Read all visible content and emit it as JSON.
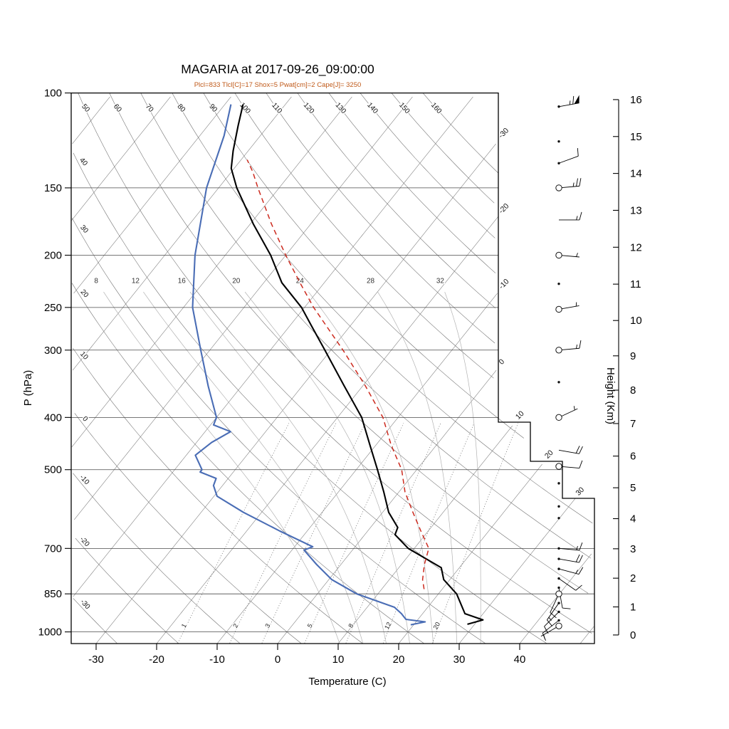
{
  "title": "MAGARIA at 2017-09-26_09:00:00",
  "subtitle": "Plcl=833 Tlcl[C]=17 Shox=5 Pwat[cm]=2 Cape[J]= 3250",
  "indices": {
    "Plcl": 833,
    "Tlcl_C": 17,
    "Shox": 5,
    "Pwat_cm": 2,
    "Cape_J": 3250
  },
  "axes": {
    "pressure_label": "P (hPa)",
    "temperature_label": "Temperature (C)",
    "height_label": "Height (Km)",
    "pressure_ticks": [
      100,
      150,
      200,
      250,
      300,
      400,
      500,
      700,
      850,
      1000
    ],
    "temperature_ticks": [
      -30,
      -20,
      -10,
      0,
      10,
      20,
      30,
      40
    ],
    "height_ticks_km": [
      0,
      1,
      2,
      3,
      4,
      5,
      6,
      7,
      8,
      9,
      10,
      11,
      12,
      13,
      14,
      15,
      16
    ]
  },
  "background": {
    "isotherm_min": -110,
    "isotherm_max": 50,
    "isotherm_step": 10,
    "isotherm_edge_label_values": [
      -30,
      -20,
      -10,
      0,
      10,
      20,
      30
    ],
    "dry_adiabat_min": -30,
    "dry_adiabat_max": 160,
    "dry_adiabat_top_labels": [
      50,
      60,
      70,
      80,
      90,
      100,
      110,
      120,
      130,
      140,
      150,
      160
    ],
    "dry_adiabat_left_labels": [
      40,
      30,
      20,
      10,
      0,
      -10,
      -20,
      -30
    ],
    "moist_adiabats": [
      8,
      12,
      16,
      20,
      24,
      28,
      32
    ],
    "mixing_ratio_lines": [
      1,
      2,
      3,
      5,
      8,
      12,
      20
    ]
  },
  "chart_data": {
    "type": "line",
    "title": "MAGARIA at 2017-09-26_09:00:00",
    "x_axis": {
      "label": "Temperature (C)",
      "range": [
        -35,
        45
      ],
      "unit": "C"
    },
    "y_axis": {
      "label": "P (hPa)",
      "scale": "log",
      "range": [
        1050,
        100
      ],
      "unit": "hPa"
    },
    "legend_position": "none",
    "grid": true,
    "series": [
      {
        "name": "temperature",
        "color": "#000000",
        "style": "solid",
        "points": [
          [
            968,
            28.8
          ],
          [
            950,
            30.8
          ],
          [
            925,
            27
          ],
          [
            850,
            23
          ],
          [
            800,
            19
          ],
          [
            760,
            17
          ],
          [
            700,
            9
          ],
          [
            660,
            5
          ],
          [
            640,
            4.5
          ],
          [
            600,
            1
          ],
          [
            550,
            -2.5
          ],
          [
            500,
            -6.5
          ],
          [
            450,
            -11
          ],
          [
            400,
            -16
          ],
          [
            350,
            -23
          ],
          [
            300,
            -31
          ],
          [
            270,
            -36.5
          ],
          [
            250,
            -40.5
          ],
          [
            225,
            -47
          ],
          [
            200,
            -52.5
          ],
          [
            175,
            -59.5
          ],
          [
            150,
            -67
          ],
          [
            138,
            -70.5
          ],
          [
            128,
            -72.5
          ],
          [
            115,
            -75
          ],
          [
            105,
            -77
          ]
        ]
      },
      {
        "name": "dewpoint",
        "color": "#4a6db5",
        "style": "solid",
        "points": [
          [
            970,
            19.5
          ],
          [
            958,
            21.5
          ],
          [
            948,
            18
          ],
          [
            925,
            16.5
          ],
          [
            900,
            14.5
          ],
          [
            850,
            6.5
          ],
          [
            800,
            0.5
          ],
          [
            750,
            -4
          ],
          [
            705,
            -8
          ],
          [
            695,
            -7
          ],
          [
            650,
            -14.5
          ],
          [
            600,
            -23
          ],
          [
            560,
            -29.5
          ],
          [
            535,
            -31.5
          ],
          [
            519,
            -32
          ],
          [
            505,
            -35.5
          ],
          [
            500,
            -35.5
          ],
          [
            470,
            -38.5
          ],
          [
            445,
            -37.5
          ],
          [
            425,
            -35.8
          ],
          [
            413,
            -39.5
          ],
          [
            400,
            -40
          ],
          [
            350,
            -45.5
          ],
          [
            300,
            -51.5
          ],
          [
            250,
            -58.5
          ],
          [
            200,
            -65
          ],
          [
            150,
            -72
          ],
          [
            120,
            -76
          ],
          [
            105,
            -79
          ]
        ]
      },
      {
        "name": "parcel",
        "color": "#cc2a1e",
        "style": "dashed",
        "points": [
          [
            833,
            17
          ],
          [
            800,
            15.5
          ],
          [
            750,
            13.8
          ],
          [
            700,
            12.4
          ],
          [
            650,
            8.8
          ],
          [
            600,
            5
          ],
          [
            550,
            1
          ],
          [
            500,
            -2.5
          ],
          [
            450,
            -7.5
          ],
          [
            400,
            -12.5
          ],
          [
            350,
            -19.5
          ],
          [
            300,
            -28
          ],
          [
            250,
            -38.5
          ],
          [
            225,
            -44
          ],
          [
            200,
            -50
          ],
          [
            175,
            -56.5
          ],
          [
            150,
            -63.5
          ],
          [
            140,
            -66.5
          ],
          [
            133,
            -69
          ]
        ]
      }
    ],
    "wind_barbs_kt": [
      {
        "p": 106,
        "spd": 65,
        "dir": 80,
        "marker": "dot"
      },
      {
        "p": 123,
        "spd": 0,
        "dir": 0,
        "marker": "dot"
      },
      {
        "p": 135,
        "spd": 10,
        "dir": 70,
        "marker": "dot"
      },
      {
        "p": 150,
        "spd": 25,
        "dir": 85,
        "marker": "circle"
      },
      {
        "p": 172,
        "spd": 15,
        "dir": 90,
        "marker": "none"
      },
      {
        "p": 200,
        "spd": 5,
        "dir": 95,
        "marker": "circle"
      },
      {
        "p": 226,
        "spd": 0,
        "dir": 0,
        "marker": "dot"
      },
      {
        "p": 252,
        "spd": 5,
        "dir": 80,
        "marker": "circle"
      },
      {
        "p": 300,
        "spd": 15,
        "dir": 85,
        "marker": "circle"
      },
      {
        "p": 344,
        "spd": 0,
        "dir": 0,
        "marker": "dot"
      },
      {
        "p": 400,
        "spd": 5,
        "dir": 65,
        "marker": "circle"
      },
      {
        "p": 460,
        "spd": 20,
        "dir": 100,
        "marker": "none"
      },
      {
        "p": 493,
        "spd": 10,
        "dir": 95,
        "marker": "circle"
      },
      {
        "p": 530,
        "spd": 0,
        "dir": 0,
        "marker": "dot"
      },
      {
        "p": 585,
        "spd": 0,
        "dir": 0,
        "marker": "dot"
      },
      {
        "p": 615,
        "spd": 0,
        "dir": 0,
        "marker": "dot"
      },
      {
        "p": 700,
        "spd": 15,
        "dir": 95,
        "marker": "dot"
      },
      {
        "p": 732,
        "spd": 20,
        "dir": 100,
        "marker": "dot"
      },
      {
        "p": 764,
        "spd": 15,
        "dir": 105,
        "marker": "dot"
      },
      {
        "p": 796,
        "spd": 10,
        "dir": 125,
        "marker": "dot"
      },
      {
        "p": 828,
        "spd": 10,
        "dir": 170,
        "marker": "dot"
      },
      {
        "p": 850,
        "spd": 10,
        "dir": 205,
        "marker": "circle"
      },
      {
        "p": 884,
        "spd": 15,
        "dir": 215,
        "marker": "dot"
      },
      {
        "p": 918,
        "spd": 10,
        "dir": 225,
        "marker": "dot"
      },
      {
        "p": 952,
        "spd": 8,
        "dir": 232,
        "marker": "dot"
      },
      {
        "p": 975,
        "spd": 3,
        "dir": 240,
        "marker": "circle"
      }
    ]
  },
  "colors": {
    "temperature": "#000000",
    "dewpoint": "#4a6db5",
    "parcel": "#cc2a1e",
    "subtitle": "#c05a1a",
    "grid": "#6b6b6b",
    "moist_adiabat": "#b3b3b3",
    "frame": "#000000"
  }
}
